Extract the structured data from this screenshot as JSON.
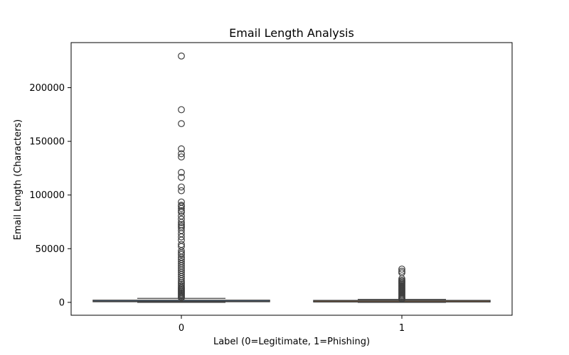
{
  "chart_data": {
    "type": "box",
    "title": "Email Length Analysis",
    "xlabel": "Label (0=Legitimate, 1=Phishing)",
    "ylabel": "Email Length (Characters)",
    "categories": [
      "0",
      "1"
    ],
    "ylim": [
      -12000,
      242000
    ],
    "yticks": [
      0,
      50000,
      100000,
      150000,
      200000
    ],
    "ytick_labels": [
      "0",
      "50000",
      "100000",
      "150000",
      "200000"
    ],
    "grid": false,
    "series": [
      {
        "category": "0",
        "color": "#4f7fb0",
        "q1": 300,
        "median": 700,
        "q3": 1300,
        "whisker_low": 0,
        "whisker_high": 3700,
        "outliers": [
          229500,
          179500,
          166500,
          143000,
          138500,
          135500,
          121000,
          116500,
          107500,
          104000,
          93500,
          90500,
          89500,
          87500,
          85500,
          84000,
          80500,
          77500,
          74500,
          72500,
          71000,
          69500,
          67000,
          64000,
          61000,
          58000,
          54000,
          52000,
          48000,
          46000,
          44500,
          42000,
          40000,
          38000,
          36000,
          34000,
          32000,
          30000,
          28000,
          26000,
          24000,
          22000,
          20000,
          18500,
          17000,
          15500,
          14000,
          13000,
          12000,
          11000,
          10000,
          9000,
          8000,
          7000,
          6000,
          5000,
          4300
        ]
      },
      {
        "category": "1",
        "color": "#e0873b",
        "q1": 250,
        "median": 600,
        "q3": 1100,
        "whisker_low": 0,
        "whisker_high": 2800,
        "outliers": [
          31000,
          29000,
          27500,
          22000,
          20500,
          19500,
          18500,
          17500,
          16500,
          15500,
          14500,
          13500,
          12500,
          11500,
          10500,
          9500,
          8500,
          7500,
          6500,
          5500,
          4500,
          3600,
          3200
        ]
      }
    ]
  }
}
